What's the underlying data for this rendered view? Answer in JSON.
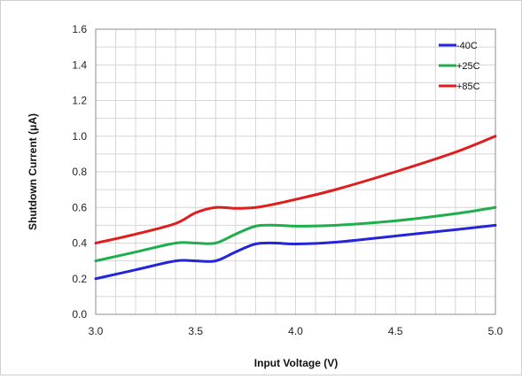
{
  "chart_data": {
    "type": "line",
    "title": "",
    "xlabel": "Input Voltage (V)",
    "ylabel": "Shutdown Current (μA)",
    "xlim": [
      3.0,
      5.0
    ],
    "ylim": [
      0.0,
      1.6
    ],
    "x_ticks": [
      "3.0",
      "3.5",
      "4.0",
      "4.5",
      "5.0"
    ],
    "y_ticks": [
      "0.0",
      "0.2",
      "0.4",
      "0.6",
      "0.8",
      "1.0",
      "1.2",
      "1.4",
      "1.6"
    ],
    "grid": true,
    "legend_position": "top-right",
    "series": [
      {
        "name": "-40C",
        "color": "#2424d8",
        "x": [
          3.0,
          3.2,
          3.4,
          3.5,
          3.6,
          3.7,
          3.8,
          3.9,
          4.0,
          4.2,
          4.5,
          4.8,
          5.0
        ],
        "values": [
          0.2,
          0.25,
          0.3,
          0.3,
          0.3,
          0.35,
          0.395,
          0.4,
          0.395,
          0.405,
          0.44,
          0.475,
          0.5
        ]
      },
      {
        "name": "+25C",
        "color": "#1fae4c",
        "x": [
          3.0,
          3.2,
          3.4,
          3.5,
          3.6,
          3.7,
          3.8,
          3.9,
          4.0,
          4.2,
          4.5,
          4.8,
          5.0
        ],
        "values": [
          0.3,
          0.35,
          0.4,
          0.4,
          0.4,
          0.45,
          0.495,
          0.5,
          0.495,
          0.5,
          0.525,
          0.565,
          0.6
        ]
      },
      {
        "name": "+85C",
        "color": "#e01c1c",
        "x": [
          3.0,
          3.2,
          3.4,
          3.5,
          3.6,
          3.7,
          3.8,
          3.9,
          4.0,
          4.2,
          4.5,
          4.8,
          5.0
        ],
        "values": [
          0.4,
          0.45,
          0.51,
          0.57,
          0.6,
          0.595,
          0.6,
          0.62,
          0.645,
          0.7,
          0.8,
          0.91,
          1.0
        ]
      }
    ]
  }
}
